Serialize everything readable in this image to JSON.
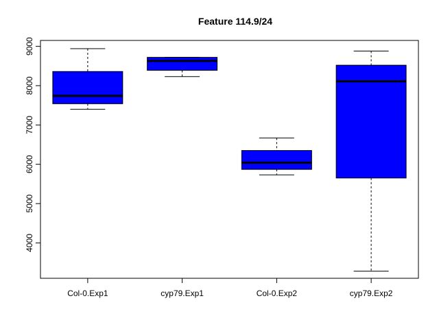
{
  "chart_data": {
    "type": "box",
    "title": "Feature  114.9/24",
    "xlabel": "",
    "ylabel": "",
    "ylim": [
      3100,
      9150
    ],
    "yticks": [
      4000,
      5000,
      6000,
      7000,
      8000,
      9000
    ],
    "ytick_labels": [
      "4000",
      "5000",
      "6000",
      "7000",
      "8000",
      "9000"
    ],
    "box_color": "#0000ff",
    "categories": [
      "Col-0.Exp1",
      "cyp79.Exp1",
      "Col-0.Exp2",
      "cyp79.Exp2"
    ],
    "boxes": [
      {
        "category": "Col-0.Exp1",
        "min": 7400,
        "q1": 7540,
        "median": 7740,
        "q3": 8360,
        "max": 8940
      },
      {
        "category": "cyp79.Exp1",
        "min": 8230,
        "q1": 8390,
        "median": 8630,
        "q3": 8720,
        "max": 8720
      },
      {
        "category": "Col-0.Exp2",
        "min": 5730,
        "q1": 5870,
        "median": 6040,
        "q3": 6350,
        "max": 6670
      },
      {
        "category": "cyp79.Exp2",
        "min": 3280,
        "q1": 5650,
        "median": 8110,
        "q3": 8520,
        "max": 8880
      }
    ],
    "grid": false,
    "legend": "none"
  }
}
